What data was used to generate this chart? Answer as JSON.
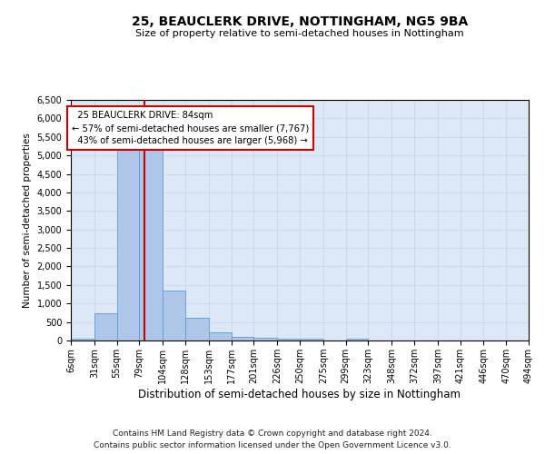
{
  "title": "25, BEAUCLERK DRIVE, NOTTINGHAM, NG5 9BA",
  "subtitle": "Size of property relative to semi-detached houses in Nottingham",
  "xlabel": "Distribution of semi-detached houses by size in Nottingham",
  "ylabel": "Number of semi-detached properties",
  "footer_line1": "Contains HM Land Registry data © Crown copyright and database right 2024.",
  "footer_line2": "Contains public sector information licensed under the Open Government Licence v3.0.",
  "property_size": 84,
  "property_label": "25 BEAUCLERK DRIVE: 84sqm",
  "pct_smaller": 57,
  "pct_larger": 43,
  "n_smaller": "7,767",
  "n_larger": "5,968",
  "bin_edges": [
    6,
    31,
    55,
    79,
    104,
    128,
    153,
    177,
    201,
    226,
    250,
    275,
    299,
    323,
    348,
    372,
    397,
    421,
    446,
    470,
    494
  ],
  "bar_heights": [
    50,
    730,
    5300,
    5250,
    1350,
    620,
    220,
    110,
    80,
    50,
    50,
    0,
    50,
    0,
    0,
    0,
    0,
    0,
    0,
    0
  ],
  "bar_color": "#aec6e8",
  "bar_edge_color": "#5b9bd5",
  "vline_color": "#cc0000",
  "grid_color": "#c8d4e8",
  "background_color": "#dce8f5",
  "ylim": [
    0,
    6500
  ],
  "yticks": [
    0,
    500,
    1000,
    1500,
    2000,
    2500,
    3000,
    3500,
    4000,
    4500,
    5000,
    5500,
    6000,
    6500
  ]
}
